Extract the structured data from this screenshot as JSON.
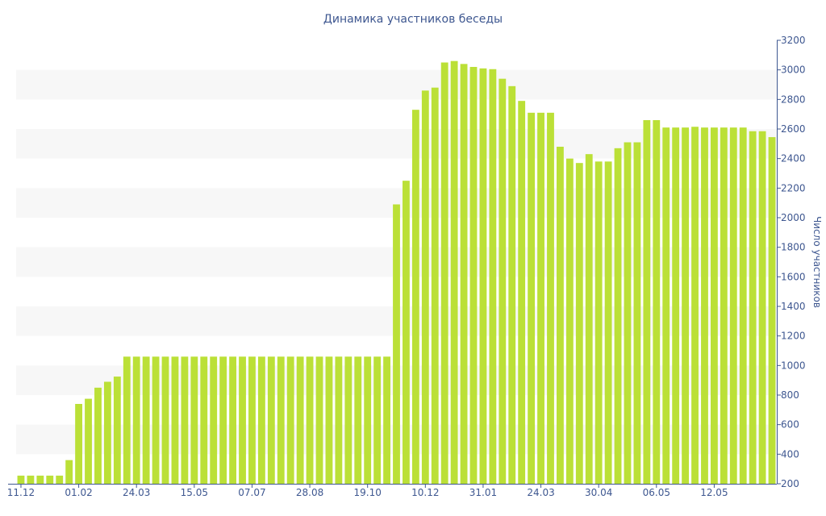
{
  "colors": {
    "bar": "#bbe037",
    "axis": "#3e5790",
    "text": "#3e5790",
    "band": "#f7f7f7"
  },
  "chart_data": {
    "type": "bar",
    "title": "Динамика участников беседы",
    "ylabel": "Число участников",
    "xlabel": "",
    "ylim": [
      200,
      3200
    ],
    "yticks": [
      200,
      400,
      600,
      800,
      1000,
      1200,
      1400,
      1600,
      1800,
      2000,
      2200,
      2400,
      2600,
      2800,
      3000,
      3200
    ],
    "y_axis_position": "right",
    "grid": "alternating horizontal bands",
    "legend": "none",
    "xtick_labels": [
      {
        "label": "11.12",
        "index": 0
      },
      {
        "label": "01.02",
        "index": 6
      },
      {
        "label": "24.03",
        "index": 12
      },
      {
        "label": "15.05",
        "index": 18
      },
      {
        "label": "07.07",
        "index": 24
      },
      {
        "label": "28.08",
        "index": 30
      },
      {
        "label": "19.10",
        "index": 36
      },
      {
        "label": "10.12",
        "index": 42
      },
      {
        "label": "31.01",
        "index": 48
      },
      {
        "label": "24.03",
        "index": 54
      },
      {
        "label": "30.04",
        "index": 60
      },
      {
        "label": "06.05",
        "index": 66
      },
      {
        "label": "12.05",
        "index": 72
      }
    ],
    "values": [
      255,
      255,
      255,
      255,
      255,
      360,
      740,
      775,
      850,
      890,
      925,
      1060,
      1060,
      1060,
      1060,
      1060,
      1060,
      1060,
      1060,
      1060,
      1060,
      1060,
      1060,
      1060,
      1060,
      1060,
      1060,
      1060,
      1060,
      1060,
      1060,
      1060,
      1060,
      1060,
      1060,
      1060,
      1060,
      1060,
      1060,
      2090,
      2250,
      2730,
      2860,
      2880,
      3050,
      3060,
      3040,
      3020,
      3010,
      3005,
      2940,
      2890,
      2790,
      2710,
      2710,
      2710,
      2480,
      2400,
      2370,
      2430,
      2380,
      2380,
      2470,
      2510,
      2510,
      2660,
      2660,
      2610,
      2610,
      2610,
      2615,
      2610,
      2610,
      2610,
      2610,
      2610,
      2585,
      2585,
      2545
    ]
  }
}
